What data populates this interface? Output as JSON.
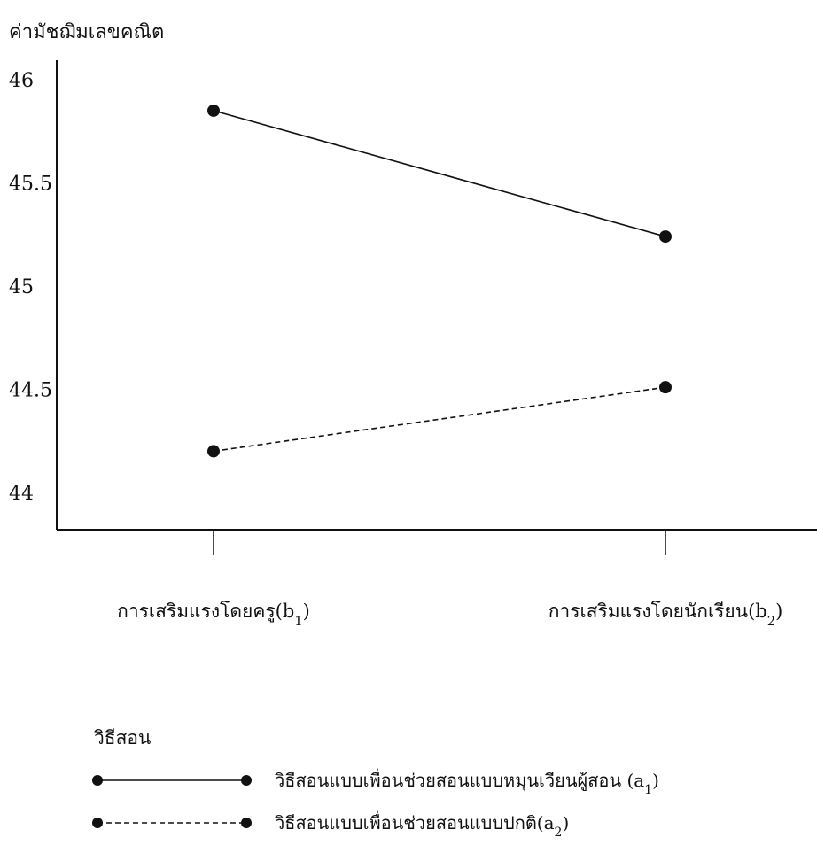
{
  "chart_data": {
    "type": "line",
    "title": "",
    "ylabel": "ค่ามัชฌิมเลขคณิต",
    "xlabel": "",
    "ylim": [
      43.8,
      46.05
    ],
    "yticks": [
      44,
      44.5,
      45,
      45.5,
      46
    ],
    "ytick_labels": [
      "44",
      "44.5",
      "45",
      "45.5",
      "46"
    ],
    "categories": [
      "การเสริมแรงโดยครู(b1)",
      "การเสริมแรงโดยนักเรียน(b2)"
    ],
    "category_labels": [
      {
        "main": "การเสริมแรงโดยครู(b",
        "sub": "1",
        "tail": ")"
      },
      {
        "main": "การเสริมแรงโดยนักเรียน(b",
        "sub": "2",
        "tail": ")"
      }
    ],
    "series": [
      {
        "name": "วิธีสอนแบบเพื่อนช่วยสอนแบบหมุนเวียนผู้สอน (a1)",
        "label": {
          "main": "วิธีสอนแบบเพื่อนช่วยสอนแบบหมุนเวียนผู้สอน (a",
          "sub": "1",
          "tail": ")"
        },
        "values": [
          45.85,
          45.24
        ],
        "style": "solid"
      },
      {
        "name": "วิธีสอนแบบเพื่อนช่วยสอนแบบปกติ(a2)",
        "label": {
          "main": "วิธีสอนแบบเพื่อนช่วยสอนแบบปกติ(a",
          "sub": "2",
          "tail": ")"
        },
        "values": [
          44.2,
          44.51
        ],
        "style": "dashed"
      }
    ],
    "legend": {
      "title": "วิธีสอน",
      "position": "bottom-left"
    },
    "grid": false,
    "colors": {
      "line": "#111111",
      "marker": "#111111"
    }
  }
}
